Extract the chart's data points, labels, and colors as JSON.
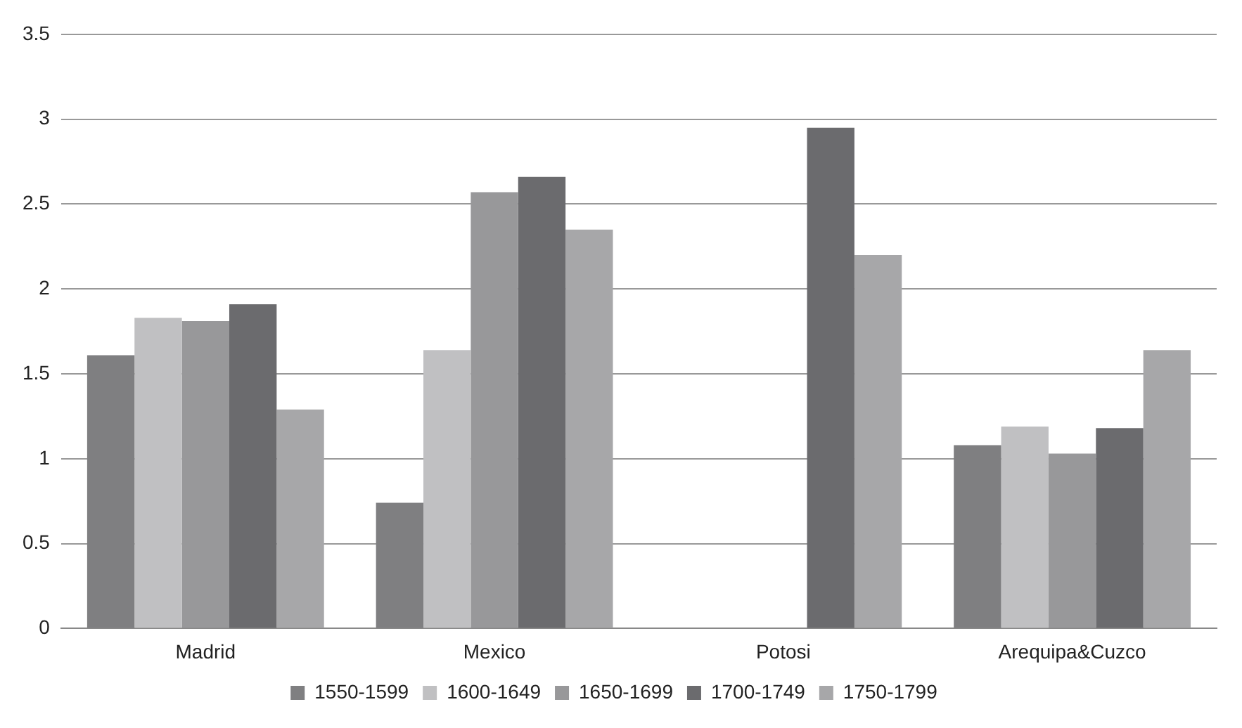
{
  "chart_data": {
    "type": "bar",
    "categories": [
      "Madrid",
      "Mexico",
      "Potosi",
      "Arequipa&Cuzco"
    ],
    "series": [
      {
        "name": "1550-1599",
        "color": "#7f7f81",
        "values": [
          1.61,
          0.74,
          null,
          1.08
        ]
      },
      {
        "name": "1600-1649",
        "color": "#c0c0c2",
        "values": [
          1.83,
          1.64,
          null,
          1.19
        ]
      },
      {
        "name": "1650-1699",
        "color": "#98989a",
        "values": [
          1.81,
          2.57,
          null,
          1.03
        ]
      },
      {
        "name": "1700-1749",
        "color": "#6b6b6e",
        "values": [
          1.91,
          2.66,
          2.95,
          1.18
        ]
      },
      {
        "name": "1750-1799",
        "color": "#a7a7a9",
        "values": [
          1.29,
          2.35,
          2.2,
          1.64
        ]
      }
    ],
    "ylim": [
      0,
      3.5
    ],
    "yticks": [
      0,
      0.5,
      1,
      1.5,
      2,
      2.5,
      3,
      3.5
    ],
    "grid": "y",
    "legend": "bottom"
  }
}
